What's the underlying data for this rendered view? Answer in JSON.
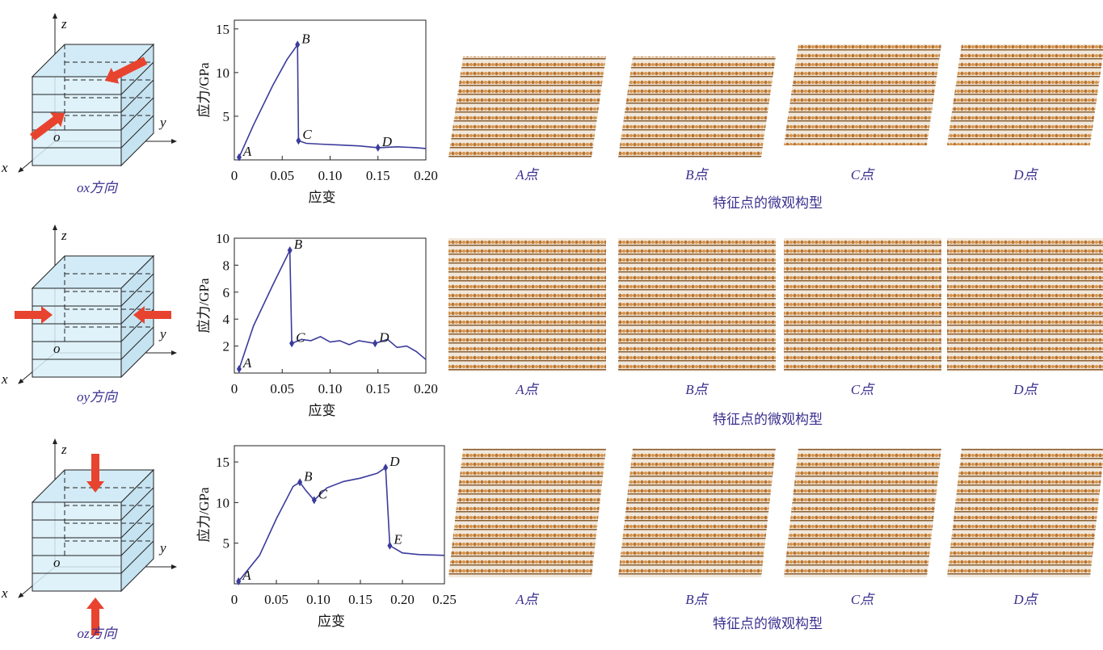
{
  "chart_data": [
    {
      "type": "line",
      "x": [
        0.005,
        0.02,
        0.04,
        0.055,
        0.066,
        0.067,
        0.075,
        0.09,
        0.11,
        0.13,
        0.15,
        0.17,
        0.19,
        0.2
      ],
      "values": [
        0.3,
        4,
        8.5,
        11.5,
        13.2,
        2.2,
        1.9,
        1.8,
        1.7,
        1.6,
        1.4,
        1.5,
        1.4,
        1.3
      ],
      "point_labels": [
        "A",
        null,
        null,
        null,
        "B",
        "C",
        null,
        null,
        null,
        null,
        "D",
        null,
        null,
        null
      ],
      "color": "#3b3b9c",
      "xlabel": "应变",
      "ylabel": "应力/GPa",
      "xlim": [
        0,
        0.2
      ],
      "ylim": [
        0,
        16
      ],
      "xticks": [
        0,
        0.05,
        {
          "value": 0.1,
          "label": "0.10"
        },
        0.15,
        {
          "value": 0.2,
          "label": "0.20"
        }
      ],
      "yticks": [
        5,
        10,
        15
      ]
    },
    {
      "type": "line",
      "x": [
        0.005,
        0.02,
        0.04,
        0.058,
        0.06,
        0.07,
        0.08,
        0.09,
        0.1,
        0.11,
        0.12,
        0.13,
        0.147,
        0.16,
        0.17,
        0.18,
        0.19,
        0.2
      ],
      "values": [
        0.3,
        3.5,
        6.5,
        9.1,
        2.2,
        2.5,
        2.4,
        2.7,
        2.3,
        2.4,
        2.1,
        2.4,
        2.2,
        2.5,
        1.9,
        2.0,
        1.6,
        1.0
      ],
      "point_labels": [
        "A",
        null,
        null,
        "B",
        "C",
        null,
        null,
        null,
        null,
        null,
        null,
        null,
        "D",
        null,
        null,
        null,
        null,
        null
      ],
      "color": "#3b3b9c",
      "xlabel": "应变",
      "ylabel": "应力/GPa",
      "xlim": [
        0,
        0.2
      ],
      "ylim": [
        0,
        10
      ],
      "xticks": [
        0,
        0.05,
        {
          "value": 0.1,
          "label": "0.10"
        },
        0.15,
        {
          "value": 0.2,
          "label": "0.20"
        }
      ],
      "yticks": [
        2,
        4,
        6,
        8,
        10
      ]
    },
    {
      "type": "line",
      "x": [
        0.005,
        0.03,
        0.05,
        0.07,
        0.078,
        0.085,
        0.095,
        0.11,
        0.13,
        0.15,
        0.17,
        0.18,
        0.185,
        0.2,
        0.22,
        0.25
      ],
      "values": [
        0.3,
        3.5,
        8,
        12,
        12.5,
        11.5,
        10.3,
        11.8,
        12.6,
        13,
        13.6,
        14.3,
        4.7,
        3.8,
        3.6,
        3.5
      ],
      "point_labels": [
        "A",
        null,
        null,
        null,
        "B",
        null,
        "C",
        null,
        null,
        null,
        null,
        "D",
        "E",
        null,
        null,
        null
      ],
      "color": "#3b3b9c",
      "xlabel": "应变",
      "ylabel": "应力/GPa",
      "xlim": [
        0,
        0.25
      ],
      "ylim": [
        0,
        17
      ],
      "xticks": [
        0,
        0.05,
        {
          "value": 0.1,
          "label": "0.10"
        },
        0.15,
        {
          "value": 0.2,
          "label": "0.20"
        },
        0.25
      ],
      "yticks": [
        5,
        10,
        15
      ]
    }
  ],
  "panels": [
    {
      "axes_labels": [
        "z",
        "y",
        "x"
      ],
      "origin": "o",
      "direction": "ox方向",
      "micro_labels": [
        "A点",
        "B点",
        "C点",
        "D点"
      ],
      "micro_caption": "特征点的微观构型"
    },
    {
      "axes_labels": [
        "z",
        "y",
        "x"
      ],
      "origin": "o",
      "direction": "oy方向",
      "micro_labels": [
        "A点",
        "B点",
        "C点",
        "D点"
      ],
      "micro_caption": "特征点的微观构型"
    },
    {
      "axes_labels": [
        "z",
        "y",
        "x"
      ],
      "origin": "o",
      "direction": "oz方向",
      "micro_labels": [
        "A点",
        "B点",
        "C点",
        "D点"
      ],
      "micro_caption": "特征点的微观构型"
    }
  ]
}
